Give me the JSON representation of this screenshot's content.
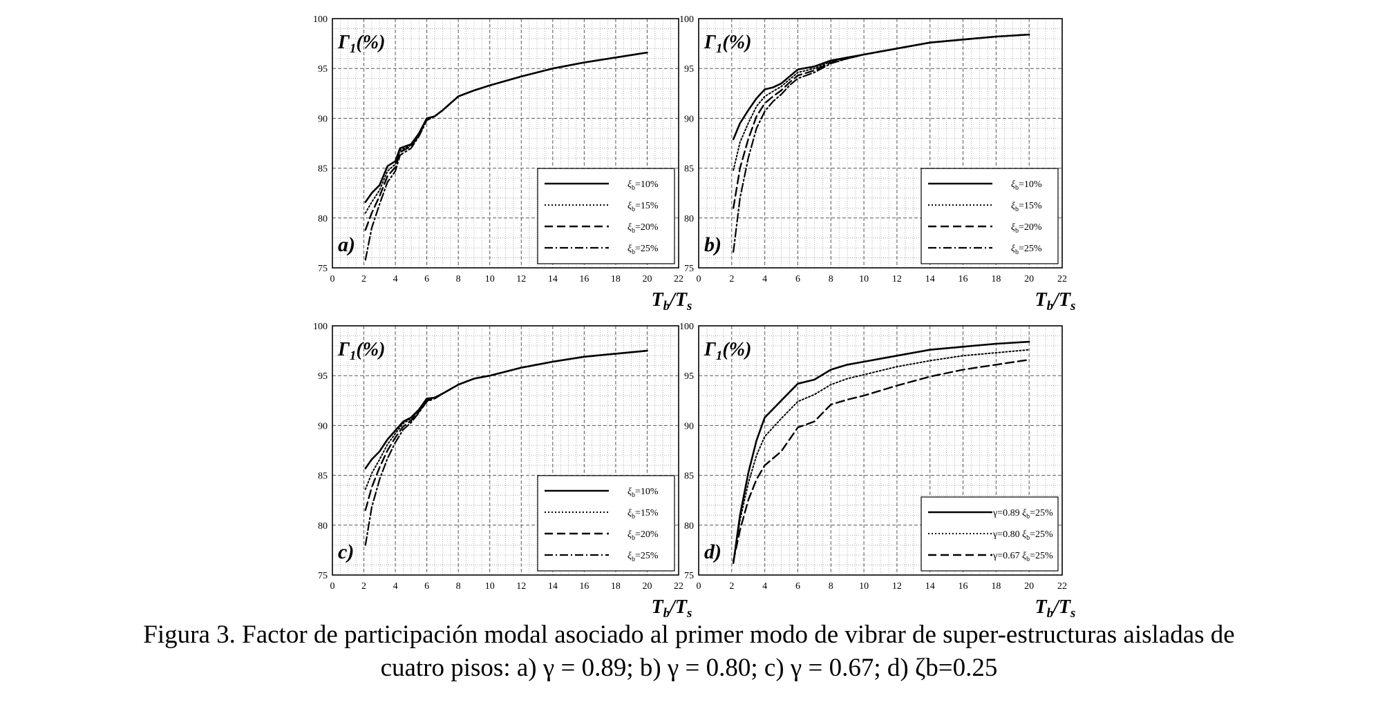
{
  "caption": {
    "line1": "Figura 3. Factor de participación modal asociado al primer modo de vibrar de super-estructuras aisladas de",
    "line2": "cuatro pisos: a) γ = 0.89; b) γ = 0.80; c) γ = 0.67; d) ζb=0.25"
  },
  "chart_data": [
    {
      "type": "line",
      "panel": "a)",
      "ylabel": "Γ1(%)",
      "xlabel": "Tb/Ts",
      "xlim": [
        0,
        22
      ],
      "ylim": [
        75,
        100
      ],
      "grid": true,
      "legend_position": "bottom-right",
      "xticks": [
        0,
        2,
        4,
        6,
        8,
        10,
        12,
        14,
        16,
        18,
        20,
        22
      ],
      "yticks": [
        75,
        80,
        85,
        90,
        95,
        100
      ],
      "series": [
        {
          "name": "ξb=10%",
          "style": "solid",
          "x": [
            2.1,
            2.5,
            3.0,
            3.5,
            4.0,
            4.3,
            5.0,
            5.5,
            6.0,
            6.5,
            7.0,
            8.0,
            9.0,
            10,
            12,
            14,
            16,
            18,
            20
          ],
          "y": [
            81.6,
            82.5,
            83.3,
            85.2,
            85.7,
            87.0,
            87.4,
            88.5,
            90.0,
            90.2,
            90.8,
            92.2,
            92.8,
            93.3,
            94.2,
            95.0,
            95.6,
            96.1,
            96.6
          ]
        },
        {
          "name": "ξb=15%",
          "style": "dotted",
          "x": [
            2.1,
            2.5,
            3.0,
            3.5,
            4.0,
            4.3,
            5.0,
            5.5,
            6.0,
            6.5,
            7.0,
            8.0,
            9.0,
            10,
            12,
            14,
            16,
            18,
            20
          ],
          "y": [
            80.5,
            81.6,
            82.8,
            84.7,
            85.4,
            86.8,
            87.3,
            88.4,
            89.9,
            90.2,
            90.8,
            92.2,
            92.8,
            93.3,
            94.2,
            95.0,
            95.6,
            96.1,
            96.6
          ]
        },
        {
          "name": "ξb=20%",
          "style": "dashed",
          "x": [
            2.1,
            2.5,
            3.0,
            3.5,
            4.0,
            4.3,
            5.0,
            5.5,
            6.0,
            6.5,
            7.0,
            8.0,
            9.0,
            10,
            12,
            14,
            16,
            18,
            20
          ],
          "y": [
            78.8,
            80.5,
            82.2,
            84.2,
            85.1,
            86.6,
            87.2,
            88.3,
            89.9,
            90.2,
            90.8,
            92.2,
            92.8,
            93.3,
            94.2,
            95.0,
            95.6,
            96.1,
            96.6
          ]
        },
        {
          "name": "ξb=25%",
          "style": "dashdot",
          "x": [
            2.1,
            2.5,
            3.0,
            3.5,
            4.0,
            4.3,
            5.0,
            5.5,
            6.0,
            6.5,
            7.0,
            8.0,
            9.0,
            10,
            12,
            14,
            16,
            18,
            20
          ],
          "y": [
            75.8,
            79.0,
            81.4,
            83.6,
            84.7,
            86.3,
            87.0,
            88.2,
            89.8,
            90.2,
            90.8,
            92.2,
            92.8,
            93.3,
            94.2,
            95.0,
            95.6,
            96.1,
            96.6
          ]
        }
      ]
    },
    {
      "type": "line",
      "panel": "b)",
      "ylabel": "Γ1(%)",
      "xlabel": "Tb/Ts",
      "xlim": [
        0,
        22
      ],
      "ylim": [
        75,
        100
      ],
      "grid": true,
      "legend_position": "bottom-right",
      "xticks": [
        0,
        2,
        4,
        6,
        8,
        10,
        12,
        14,
        16,
        18,
        20,
        22
      ],
      "yticks": [
        75,
        80,
        85,
        90,
        95,
        100
      ],
      "series": [
        {
          "name": "ξb=10%",
          "style": "solid",
          "x": [
            2.1,
            2.5,
            3.0,
            3.5,
            4.0,
            4.5,
            5.0,
            5.5,
            6.0,
            7.0,
            8.0,
            9.0,
            10,
            12,
            14,
            16,
            18,
            20
          ],
          "y": [
            87.9,
            89.5,
            90.8,
            92.0,
            92.9,
            93.1,
            93.5,
            94.2,
            94.9,
            95.2,
            95.8,
            96.1,
            96.4,
            97.0,
            97.6,
            97.9,
            98.2,
            98.4
          ]
        },
        {
          "name": "ξb=15%",
          "style": "dotted",
          "x": [
            2.1,
            2.5,
            3.0,
            3.5,
            4.0,
            4.5,
            5.0,
            5.5,
            6.0,
            7.0,
            8.0,
            9.0,
            10,
            12,
            14,
            16,
            18,
            20
          ],
          "y": [
            84.8,
            87.6,
            89.5,
            91.2,
            92.2,
            92.7,
            93.2,
            93.9,
            94.6,
            95.0,
            95.7,
            96.1,
            96.4,
            97.0,
            97.6,
            97.9,
            98.2,
            98.4
          ]
        },
        {
          "name": "ξb=20%",
          "style": "dashed",
          "x": [
            2.1,
            2.5,
            3.0,
            3.5,
            4.0,
            4.5,
            5.0,
            5.5,
            6.0,
            7.0,
            8.0,
            9.0,
            10,
            12,
            14,
            16,
            18,
            20
          ],
          "y": [
            81.0,
            85.0,
            87.9,
            90.2,
            91.5,
            92.2,
            92.8,
            93.6,
            94.3,
            94.8,
            95.6,
            96.0,
            96.4,
            97.0,
            97.6,
            97.9,
            98.2,
            98.4
          ]
        },
        {
          "name": "ξb=25%",
          "style": "dashdot",
          "x": [
            2.1,
            2.5,
            3.0,
            3.5,
            4.0,
            4.5,
            5.0,
            5.5,
            6.0,
            7.0,
            8.0,
            9.0,
            10,
            12,
            14,
            16,
            18,
            20
          ],
          "y": [
            76.6,
            82.0,
            86.0,
            89.0,
            90.7,
            91.7,
            92.4,
            93.3,
            94.0,
            94.6,
            95.5,
            96.0,
            96.4,
            97.0,
            97.6,
            97.9,
            98.2,
            98.4
          ]
        }
      ]
    },
    {
      "type": "line",
      "panel": "c)",
      "ylabel": "Γ1(%)",
      "xlabel": "Tb/Ts",
      "xlim": [
        0,
        22
      ],
      "ylim": [
        75,
        100
      ],
      "grid": true,
      "legend_position": "bottom-right",
      "xticks": [
        0,
        2,
        4,
        6,
        8,
        10,
        12,
        14,
        16,
        18,
        20,
        22
      ],
      "yticks": [
        75,
        80,
        85,
        90,
        95,
        100
      ],
      "series": [
        {
          "name": "ξb=10%",
          "style": "solid",
          "x": [
            2.1,
            2.5,
            3.0,
            3.5,
            4.0,
            4.5,
            5.0,
            5.5,
            6.0,
            6.5,
            7.0,
            8.0,
            9.0,
            10,
            12,
            14,
            16,
            18,
            20
          ],
          "y": [
            85.7,
            86.6,
            87.4,
            88.6,
            89.5,
            90.4,
            90.8,
            91.6,
            92.7,
            92.8,
            93.2,
            94.1,
            94.7,
            95.0,
            95.8,
            96.4,
            96.9,
            97.2,
            97.5
          ]
        },
        {
          "name": "ξb=15%",
          "style": "dotted",
          "x": [
            2.1,
            2.5,
            3.0,
            3.5,
            4.0,
            4.5,
            5.0,
            5.5,
            6.0,
            6.5,
            7.0,
            8.0,
            9.0,
            10,
            12,
            14,
            16,
            18,
            20
          ],
          "y": [
            83.6,
            85.2,
            86.6,
            88.1,
            89.2,
            90.2,
            90.7,
            91.5,
            92.6,
            92.8,
            93.2,
            94.1,
            94.7,
            95.0,
            95.8,
            96.4,
            96.9,
            97.2,
            97.5
          ]
        },
        {
          "name": "ξb=20%",
          "style": "dashed",
          "x": [
            2.1,
            2.5,
            3.0,
            3.5,
            4.0,
            4.5,
            5.0,
            5.5,
            6.0,
            6.5,
            7.0,
            8.0,
            9.0,
            10,
            12,
            14,
            16,
            18,
            20
          ],
          "y": [
            81.5,
            83.8,
            85.8,
            87.5,
            88.8,
            89.9,
            90.5,
            91.4,
            92.5,
            92.7,
            93.2,
            94.1,
            94.7,
            95.0,
            95.8,
            96.4,
            96.9,
            97.2,
            97.5
          ]
        },
        {
          "name": "ξb=25%",
          "style": "dashdot",
          "x": [
            2.1,
            2.5,
            3.0,
            3.5,
            4.0,
            4.5,
            5.0,
            5.5,
            6.0,
            6.5,
            7.0,
            8.0,
            9.0,
            10,
            12,
            14,
            16,
            18,
            20
          ],
          "y": [
            78.0,
            81.8,
            84.6,
            86.7,
            88.3,
            89.6,
            90.3,
            91.3,
            92.4,
            92.7,
            93.2,
            94.1,
            94.7,
            95.0,
            95.8,
            96.4,
            96.9,
            97.2,
            97.5
          ]
        }
      ]
    },
    {
      "type": "line",
      "panel": "d)",
      "ylabel": "Γ1(%)",
      "xlabel": "Tb/Ts",
      "xlim": [
        0,
        22
      ],
      "ylim": [
        75,
        100
      ],
      "grid": true,
      "legend_position": "bottom-right",
      "xticks": [
        0,
        2,
        4,
        6,
        8,
        10,
        12,
        14,
        16,
        18,
        20,
        22
      ],
      "yticks": [
        75,
        80,
        85,
        90,
        95,
        100
      ],
      "series": [
        {
          "name": "γ=0.89 ξb=25%",
          "legend_gamma": "γ=0.89",
          "style": "solid",
          "x": [
            2.1,
            2.5,
            3.0,
            3.5,
            4.0,
            5.0,
            6.0,
            7.0,
            8.0,
            9.0,
            10,
            12,
            14,
            16,
            18,
            20
          ],
          "y": [
            76.2,
            81.0,
            85.2,
            88.5,
            90.8,
            92.5,
            94.2,
            94.6,
            95.6,
            96.1,
            96.4,
            97.0,
            97.6,
            97.9,
            98.2,
            98.4
          ]
        },
        {
          "name": "γ=0.80 ξb=25%",
          "legend_gamma": "γ=0.80",
          "style": "dotted",
          "x": [
            2.1,
            2.5,
            3.0,
            3.5,
            4.0,
            5.0,
            6.0,
            7.0,
            8.0,
            9.0,
            10,
            12,
            14,
            16,
            18,
            20
          ],
          "y": [
            76.3,
            80.5,
            84.2,
            87.0,
            88.9,
            90.7,
            92.4,
            93.1,
            94.1,
            94.7,
            95.1,
            95.9,
            96.5,
            97.0,
            97.3,
            97.6
          ]
        },
        {
          "name": "γ=0.67 ξb=25%",
          "legend_gamma": "γ=0.67",
          "style": "dashed",
          "x": [
            2.1,
            2.5,
            3.0,
            3.5,
            4.0,
            5.0,
            6.0,
            7.0,
            8.0,
            9.0,
            10,
            12,
            14,
            16,
            18,
            20
          ],
          "y": [
            76.4,
            79.5,
            82.5,
            84.6,
            86.0,
            87.4,
            89.8,
            90.4,
            92.1,
            92.6,
            93.0,
            94.0,
            94.9,
            95.6,
            96.1,
            96.6
          ]
        }
      ]
    }
  ]
}
